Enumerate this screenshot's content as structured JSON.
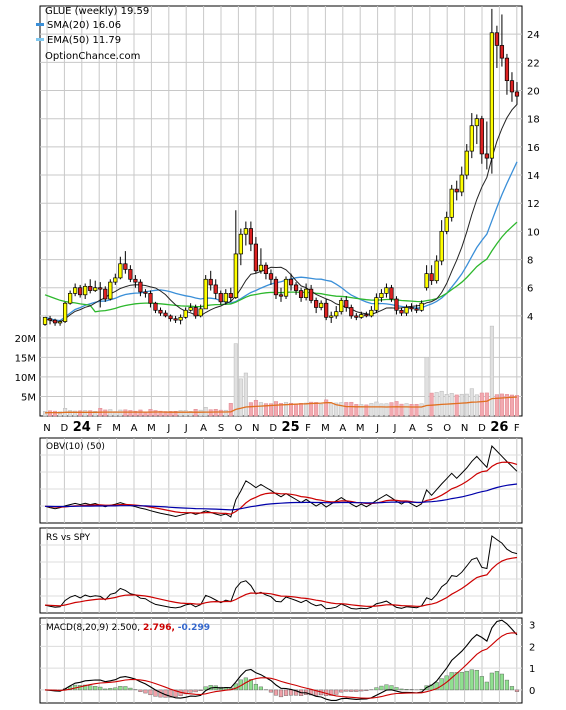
{
  "legend": {
    "title": "GLUE (weekly) 19.59",
    "sma": "SMA(20) 16.06",
    "ema": "EMA(50) 11.79",
    "source": "OptionChance.com"
  },
  "panels": {
    "obv_label": "OBV(10) (50)",
    "rs_label": "RS vs SPY",
    "macd_label": "MACD(8,20,9) 2.500,",
    "macd_signal_value": "2.796,",
    "macd_hist_value": "-0.299"
  },
  "colors": {
    "up_candle": "#ffff00",
    "down_candle": "#dd2222",
    "sma": "#3a8fd8",
    "ema": "#2db82d",
    "ema_legend": "#7fc8f0",
    "vol_up": "#e0e0e0",
    "vol_down": "#f2a9b0",
    "vol_avg": "#e07020",
    "obv_fast": "#cc0000",
    "obv_slow": "#0000aa",
    "hist_up": "#90e090",
    "hist_down": "#f0a0a8",
    "macd_value": "#cc0000",
    "macd_hist_value": "#3366cc"
  },
  "chart_data": {
    "type": "candlestick",
    "timeframe": "weekly",
    "price_axis": {
      "ylim": [
        3,
        26
      ],
      "ticks": [
        4,
        6,
        8,
        10,
        12,
        14,
        16,
        18,
        20,
        22,
        24
      ]
    },
    "volume_axis": {
      "ylim": [
        0,
        22000000
      ],
      "ticks": [
        5000000,
        10000000,
        15000000,
        20000000
      ],
      "tick_labels": [
        "5M",
        "10M",
        "15M",
        "20M"
      ]
    },
    "macd_axis": {
      "ylim": [
        -0.6,
        3.3
      ],
      "ticks": [
        0,
        1,
        2,
        3
      ],
      "tick_labels": [
        "0",
        "1",
        "2",
        "3"
      ]
    },
    "x_labels": [
      "N",
      "D",
      "24",
      "F",
      "M",
      "A",
      "M",
      "J",
      "J",
      "A",
      "S",
      "O",
      "N",
      "D",
      "25",
      "F",
      "M",
      "A",
      "M",
      "J",
      "J",
      "A",
      "S",
      "O",
      "N",
      "D",
      "26",
      "F"
    ],
    "candles": [
      [
        3.4,
        3.9,
        3.3,
        3.8
      ],
      [
        3.8,
        3.7,
        3.4,
        4.0
      ],
      [
        3.7,
        3.5,
        3.3,
        3.8
      ],
      [
        3.5,
        3.6,
        3.3,
        3.7
      ],
      [
        3.6,
        4.9,
        3.5,
        5.0
      ],
      [
        4.9,
        5.6,
        4.8,
        5.8
      ],
      [
        5.6,
        6.0,
        5.4,
        6.3
      ],
      [
        6.0,
        5.5,
        5.3,
        6.2
      ],
      [
        5.5,
        6.1,
        5.2,
        6.3
      ],
      [
        6.1,
        5.8,
        5.6,
        6.6
      ],
      [
        5.8,
        6.0,
        5.7,
        6.5
      ],
      [
        6.0,
        5.9,
        4.6,
        6.4
      ],
      [
        5.9,
        5.2,
        5.0,
        6.1
      ],
      [
        5.2,
        6.4,
        5.1,
        6.6
      ],
      [
        6.4,
        6.7,
        6.2,
        7.0
      ],
      [
        6.7,
        7.7,
        6.6,
        8.2
      ],
      [
        7.7,
        7.3,
        7.0,
        8.6
      ],
      [
        7.3,
        6.6,
        6.4,
        7.6
      ],
      [
        6.6,
        6.4,
        6.0,
        6.9
      ],
      [
        6.4,
        5.7,
        5.4,
        6.6
      ],
      [
        5.7,
        5.6,
        5.3,
        5.9
      ],
      [
        5.6,
        4.9,
        4.6,
        5.8
      ],
      [
        4.9,
        4.4,
        4.2,
        5.0
      ],
      [
        4.4,
        4.2,
        4.0,
        4.6
      ],
      [
        4.2,
        4.0,
        3.9,
        4.4
      ],
      [
        4.0,
        3.8,
        3.6,
        4.1
      ],
      [
        3.8,
        3.7,
        3.5,
        4.0
      ],
      [
        3.7,
        3.9,
        3.4,
        4.1
      ],
      [
        3.9,
        4.4,
        3.8,
        4.6
      ],
      [
        4.4,
        4.6,
        4.3,
        4.9
      ],
      [
        4.6,
        4.0,
        3.8,
        4.8
      ],
      [
        4.0,
        4.5,
        3.9,
        4.8
      ],
      [
        4.5,
        6.6,
        4.5,
        6.9
      ],
      [
        6.6,
        6.2,
        5.8,
        7.2
      ],
      [
        6.2,
        5.6,
        5.2,
        6.6
      ],
      [
        5.6,
        5.0,
        4.8,
        5.8
      ],
      [
        5.0,
        5.6,
        4.8,
        5.9
      ],
      [
        5.6,
        5.3,
        5.0,
        6.0
      ],
      [
        5.3,
        8.4,
        5.2,
        11.5
      ],
      [
        8.4,
        9.8,
        7.6,
        10.2
      ],
      [
        9.8,
        10.2,
        9.0,
        10.7
      ],
      [
        10.2,
        9.1,
        8.6,
        10.7
      ],
      [
        9.1,
        7.2,
        7.0,
        9.6
      ],
      [
        7.2,
        7.6,
        7.0,
        8.8
      ],
      [
        7.6,
        7.0,
        6.6,
        7.8
      ],
      [
        7.0,
        6.6,
        6.2,
        7.3
      ],
      [
        6.6,
        5.5,
        5.2,
        6.8
      ],
      [
        5.5,
        5.4,
        5.0,
        6.0
      ],
      [
        5.4,
        6.6,
        5.2,
        6.8
      ],
      [
        6.6,
        6.2,
        5.8,
        7.0
      ],
      [
        6.2,
        5.8,
        5.5,
        6.4
      ],
      [
        5.8,
        5.3,
        5.0,
        6.0
      ],
      [
        5.3,
        5.9,
        5.1,
        6.3
      ],
      [
        5.9,
        5.1,
        4.9,
        6.2
      ],
      [
        5.1,
        4.6,
        4.2,
        5.3
      ],
      [
        4.6,
        4.9,
        4.4,
        5.1
      ],
      [
        4.9,
        3.9,
        3.7,
        5.2
      ],
      [
        3.9,
        4.0,
        3.5,
        4.3
      ],
      [
        4.0,
        4.3,
        3.8,
        4.7
      ],
      [
        4.3,
        5.1,
        4.1,
        5.3
      ],
      [
        5.1,
        4.6,
        4.3,
        5.4
      ],
      [
        4.6,
        4.0,
        3.8,
        4.8
      ],
      [
        4.0,
        3.9,
        3.7,
        4.2
      ],
      [
        3.9,
        4.1,
        3.8,
        4.3
      ],
      [
        4.1,
        4.0,
        3.9,
        4.3
      ],
      [
        4.0,
        4.4,
        3.9,
        4.7
      ],
      [
        4.4,
        5.3,
        4.2,
        5.6
      ],
      [
        5.3,
        5.6,
        5.0,
        5.9
      ],
      [
        5.6,
        6.0,
        5.3,
        6.3
      ],
      [
        6.0,
        5.2,
        5.0,
        6.2
      ],
      [
        5.2,
        4.4,
        4.1,
        5.4
      ],
      [
        4.4,
        4.2,
        4.0,
        4.6
      ],
      [
        4.2,
        4.6,
        4.0,
        4.8
      ],
      [
        4.6,
        4.5,
        4.3,
        4.9
      ],
      [
        4.5,
        4.4,
        4.2,
        4.8
      ],
      [
        4.4,
        4.9,
        4.3,
        5.1
      ],
      [
        6.0,
        7.0,
        5.8,
        7.6
      ],
      [
        7.0,
        6.5,
        6.2,
        7.6
      ],
      [
        6.5,
        7.9,
        6.3,
        8.3
      ],
      [
        7.9,
        10.0,
        7.6,
        10.8
      ],
      [
        10.0,
        11.0,
        9.8,
        11.4
      ],
      [
        11.0,
        13.0,
        10.7,
        13.3
      ],
      [
        13.0,
        12.8,
        12.2,
        13.6
      ],
      [
        12.8,
        14.0,
        12.5,
        14.6
      ],
      [
        14.0,
        15.7,
        13.7,
        16.2
      ],
      [
        15.7,
        17.5,
        15.2,
        18.4
      ],
      [
        17.5,
        18.0,
        16.2,
        18.3
      ],
      [
        18.0,
        15.5,
        14.8,
        18.2
      ],
      [
        15.5,
        15.2,
        14.4,
        17.8
      ],
      [
        15.2,
        24.1,
        14.1,
        25.8
      ],
      [
        24.1,
        23.2,
        21.6,
        24.6
      ],
      [
        23.2,
        22.3,
        21.7,
        25.4
      ],
      [
        22.3,
        20.7,
        19.7,
        22.6
      ],
      [
        20.7,
        19.9,
        19.2,
        21.3
      ],
      [
        19.9,
        19.6,
        19.0,
        20.6
      ]
    ]
  }
}
